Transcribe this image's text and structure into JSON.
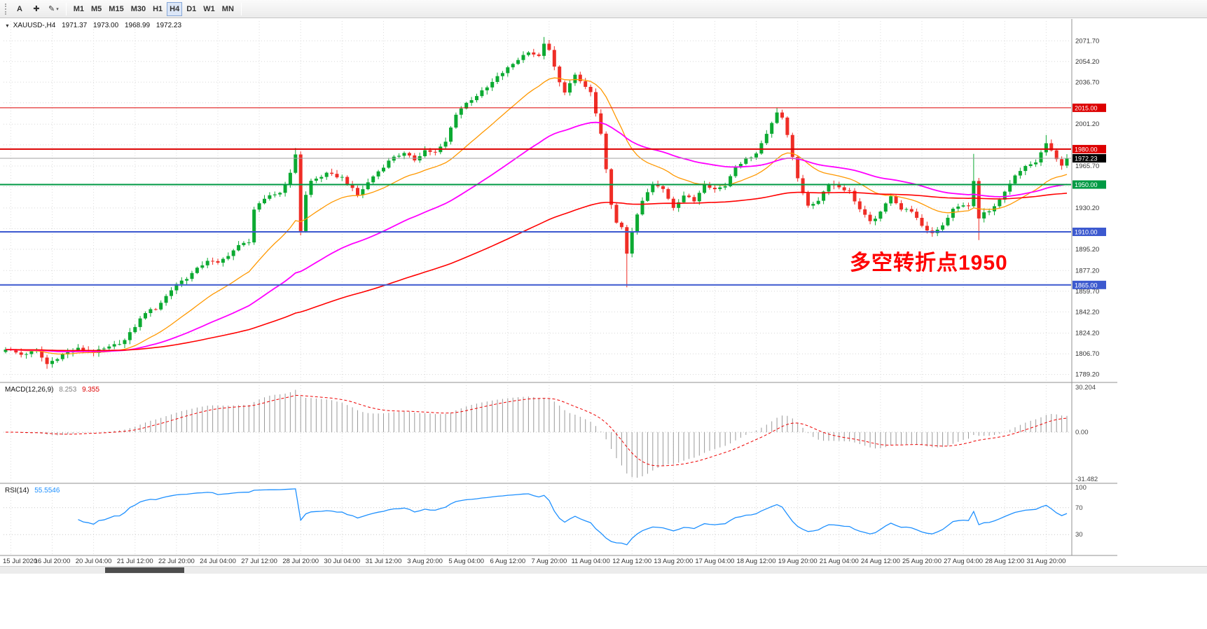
{
  "toolbar": {
    "tools": [
      {
        "name": "text-tool",
        "glyph": "A"
      },
      {
        "name": "crosshair-tool",
        "glyph": "✚"
      },
      {
        "name": "draw-tool",
        "glyph": "✎",
        "caret": "▾"
      }
    ],
    "timeframes": [
      "M1",
      "M5",
      "M15",
      "M30",
      "H1",
      "H4",
      "D1",
      "W1",
      "MN"
    ],
    "active_timeframe": "H4"
  },
  "header": {
    "dropdown_glyph": "▼",
    "symbol_period": "XAUUSD-,H4",
    "open": "1971.37",
    "high": "1973.00",
    "low": "1968.99",
    "close": "1972.23"
  },
  "annotation": {
    "text": "多空转折点1950",
    "color": "#ff0000"
  },
  "axis": {
    "price_ticks": [
      {
        "p": 2071.7,
        "label": "2071.70"
      },
      {
        "p": 2054.2,
        "label": "2054.20"
      },
      {
        "p": 2036.7,
        "label": "2036.70"
      },
      {
        "p": 2019.2,
        "label": ""
      },
      {
        "p": 2001.2,
        "label": "2001.20"
      },
      {
        "p": 1983.7,
        "label": ""
      },
      {
        "p": 1965.7,
        "label": "1965.70"
      },
      {
        "p": 1948.2,
        "label": ""
      },
      {
        "p": 1930.2,
        "label": "1930.20"
      },
      {
        "p": 1912.7,
        "label": ""
      },
      {
        "p": 1895.2,
        "label": "1895.20"
      },
      {
        "p": 1877.2,
        "label": "1877.20"
      },
      {
        "p": 1859.7,
        "label": "1859.70"
      },
      {
        "p": 1842.2,
        "label": "1842.20"
      },
      {
        "p": 1824.2,
        "label": "1824.20"
      },
      {
        "p": 1806.7,
        "label": "1806.70"
      },
      {
        "p": 1789.2,
        "label": "1789.20"
      }
    ],
    "time_labels": [
      "15 Jul 2020",
      "16 Jul 20:00",
      "20 Jul 04:00",
      "21 Jul 12:00",
      "22 Jul 20:00",
      "24 Jul 04:00",
      "27 Jul 12:00",
      "28 Jul 20:00",
      "30 Jul 04:00",
      "31 Jul 12:00",
      "3 Aug 20:00",
      "5 Aug 04:00",
      "6 Aug 12:00",
      "7 Aug 20:00",
      "11 Aug 04:00",
      "12 Aug 12:00",
      "13 Aug 20:00",
      "17 Aug 04:00",
      "18 Aug 12:00",
      "19 Aug 20:00",
      "21 Aug 04:00",
      "24 Aug 12:00",
      "25 Aug 20:00",
      "27 Aug 04:00",
      "28 Aug 12:00",
      "31 Aug 20:00"
    ]
  },
  "chart_data": {
    "type": "candlestick-ohlc",
    "symbol": "XAUUSD-",
    "timeframe": "H4",
    "bars": 206,
    "close_path": [
      [
        0,
        1811
      ],
      [
        3,
        1806
      ],
      [
        6,
        1809
      ],
      [
        8,
        1798
      ],
      [
        11,
        1806
      ],
      [
        14,
        1811
      ],
      [
        17,
        1808
      ],
      [
        20,
        1812
      ],
      [
        23,
        1818
      ],
      [
        27,
        1842
      ],
      [
        29,
        1845
      ],
      [
        33,
        1866
      ],
      [
        35,
        1871
      ],
      [
        39,
        1886
      ],
      [
        41,
        1883
      ],
      [
        45,
        1898
      ],
      [
        47,
        1902
      ],
      [
        48,
        1929
      ],
      [
        51,
        1941
      ],
      [
        53,
        1943
      ],
      [
        55,
        1959
      ],
      [
        56,
        1976
      ],
      [
        57,
        1911
      ],
      [
        58,
        1941
      ],
      [
        59,
        1953
      ],
      [
        62,
        1959
      ],
      [
        65,
        1956
      ],
      [
        68,
        1941
      ],
      [
        71,
        1957
      ],
      [
        75,
        1974
      ],
      [
        77,
        1976
      ],
      [
        79,
        1971
      ],
      [
        81,
        1979
      ],
      [
        83,
        1977
      ],
      [
        85,
        1986
      ],
      [
        87,
        2010
      ],
      [
        89,
        2019
      ],
      [
        93,
        2032
      ],
      [
        95,
        2041
      ],
      [
        99,
        2056
      ],
      [
        101,
        2063
      ],
      [
        103,
        2058
      ],
      [
        104,
        2070
      ],
      [
        105,
        2063
      ],
      [
        107,
        2036
      ],
      [
        108,
        2029
      ],
      [
        110,
        2042
      ],
      [
        113,
        2028
      ],
      [
        115,
        1992
      ],
      [
        116,
        1962
      ],
      [
        117,
        1934
      ],
      [
        118,
        1917
      ],
      [
        119,
        1913
      ],
      [
        120,
        1892
      ],
      [
        121,
        1911
      ],
      [
        123,
        1936
      ],
      [
        125,
        1950
      ],
      [
        127,
        1946
      ],
      [
        129,
        1931
      ],
      [
        131,
        1941
      ],
      [
        133,
        1936
      ],
      [
        135,
        1951
      ],
      [
        137,
        1946
      ],
      [
        139,
        1949
      ],
      [
        141,
        1966
      ],
      [
        143,
        1971
      ],
      [
        145,
        1977
      ],
      [
        147,
        1993
      ],
      [
        149,
        2012
      ],
      [
        150,
        2007
      ],
      [
        151,
        1991
      ],
      [
        153,
        1956
      ],
      [
        155,
        1931
      ],
      [
        157,
        1937
      ],
      [
        159,
        1951
      ],
      [
        161,
        1948
      ],
      [
        163,
        1944
      ],
      [
        165,
        1929
      ],
      [
        167,
        1918
      ],
      [
        169,
        1926
      ],
      [
        171,
        1941
      ],
      [
        173,
        1929
      ],
      [
        175,
        1928
      ],
      [
        177,
        1914
      ],
      [
        179,
        1909
      ],
      [
        181,
        1916
      ],
      [
        183,
        1929
      ],
      [
        185,
        1933
      ],
      [
        186,
        1931
      ],
      [
        187,
        1953
      ],
      [
        188,
        1921
      ],
      [
        189,
        1926
      ],
      [
        191,
        1931
      ],
      [
        193,
        1943
      ],
      [
        195,
        1957
      ],
      [
        197,
        1965
      ],
      [
        199,
        1969
      ],
      [
        201,
        1985
      ],
      [
        203,
        1971
      ],
      [
        204,
        1967
      ],
      [
        205,
        1972.23
      ]
    ],
    "extremes": [
      {
        "i": 8,
        "low": 1794
      },
      {
        "i": 56,
        "high": 1981
      },
      {
        "i": 57,
        "low": 1907
      },
      {
        "i": 104,
        "high": 2075
      },
      {
        "i": 120,
        "low": 1863
      },
      {
        "i": 149,
        "high": 2015
      },
      {
        "i": 187,
        "high": 1976
      },
      {
        "i": 188,
        "low": 1903
      },
      {
        "i": 201,
        "high": 1992
      }
    ],
    "hlines": [
      {
        "price": 2015.0,
        "label": "2015.00",
        "color": "#dd0000",
        "width": 1
      },
      {
        "price": 1980.0,
        "label": "1980.00",
        "color": "#dd0000",
        "width": 2
      },
      {
        "price": 1950.0,
        "label": "1950.00",
        "color": "#009a44",
        "width": 2
      },
      {
        "price": 1910.0,
        "label": "1910.00",
        "color": "#3c59cf",
        "width": 2
      },
      {
        "price": 1865.0,
        "label": "1865.00",
        "color": "#3c59cf",
        "width": 2
      }
    ],
    "current_price": {
      "value": 1972.23,
      "label": "1972.23",
      "box_color": "#000000",
      "line_color": "#a0a0a0"
    },
    "moving_averages": [
      {
        "name": "fast-ma",
        "period": 20,
        "color": "#ff9800",
        "width": 1.3
      },
      {
        "name": "medium-ma",
        "period": 55,
        "color": "#ff00ff",
        "width": 1.8
      },
      {
        "name": "slow-ma",
        "period": 144,
        "color": "#ff0000",
        "width": 1.6
      }
    ],
    "candle_colors": {
      "bull": "#0caa32",
      "bear": "#ef2d26"
    }
  },
  "indicators": {
    "macd": {
      "label": "MACD(12,26,9)",
      "main_value": "8.253",
      "signal_value": "9.355",
      "params": {
        "fast": 12,
        "slow": 26,
        "signal": 9
      },
      "axis_labels": [
        {
          "v": 30.204,
          "label": "30.204"
        },
        {
          "v": 0,
          "label": "0.00"
        },
        {
          "v": -31.482,
          "label": "-31.482"
        }
      ],
      "histogram_color": "#9a9a9a",
      "signal_color": "#ee0000"
    },
    "rsi": {
      "label": "RSI(14)",
      "value": "55.5546",
      "period": 14,
      "levels": [
        70,
        30
      ],
      "axis_labels": [
        {
          "v": 100,
          "label": "100"
        },
        {
          "v": 70,
          "label": "70"
        },
        {
          "v": 30,
          "label": "30"
        }
      ],
      "line_color": "#1E90FF"
    }
  }
}
